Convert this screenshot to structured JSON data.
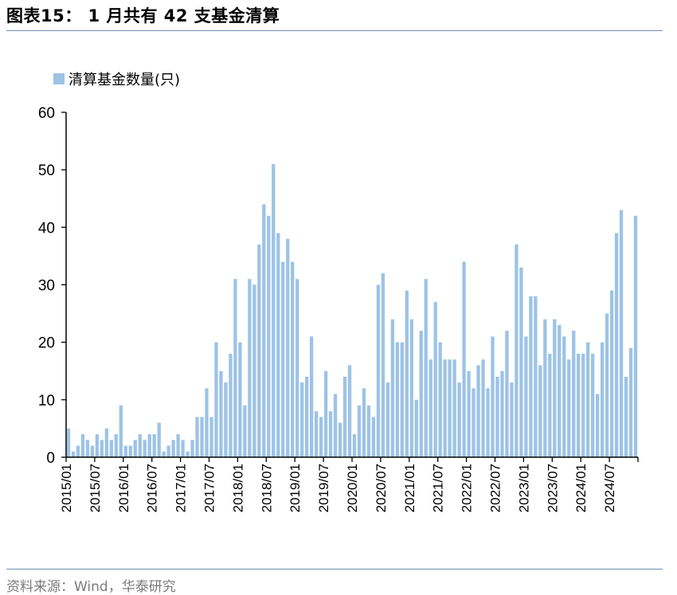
{
  "header": {
    "title": "图表15： 1 月共有 42 支基金清算"
  },
  "footer": {
    "source": "资料来源：Wind，华泰研究"
  },
  "colors": {
    "bar": "#9dc3e6",
    "rule": "#6f8fb5",
    "axis": "#000000"
  },
  "chart_data": {
    "type": "bar",
    "title": "",
    "xlabel": "",
    "ylabel": "",
    "ylim": [
      0,
      60
    ],
    "yticks": [
      0,
      10,
      20,
      30,
      40,
      50,
      60
    ],
    "grid": false,
    "legend_position": "top-left",
    "series": [
      {
        "name": "清算基金数量(只)",
        "values": [
          5,
          1,
          2,
          4,
          3,
          2,
          4,
          3,
          5,
          3,
          4,
          9,
          2,
          2,
          3,
          4,
          3,
          4,
          4,
          6,
          1,
          2,
          3,
          4,
          3,
          1,
          3,
          7,
          7,
          12,
          7,
          20,
          15,
          13,
          18,
          31,
          20,
          9,
          31,
          30,
          37,
          44,
          42,
          51,
          39,
          34,
          38,
          34,
          31,
          13,
          14,
          21,
          8,
          7,
          15,
          8,
          11,
          6,
          14,
          16,
          4,
          9,
          12,
          9,
          7,
          30,
          32,
          13,
          24,
          20,
          20,
          29,
          24,
          10,
          22,
          31,
          17,
          27,
          20,
          17,
          17,
          17,
          13,
          34,
          15,
          12,
          16,
          17,
          12,
          21,
          14,
          15,
          22,
          13,
          37,
          33,
          21,
          28,
          28,
          16,
          24,
          18,
          24,
          23,
          21,
          17,
          22,
          18,
          18,
          20,
          18,
          11,
          20,
          25,
          29,
          39,
          43,
          14,
          19,
          42
        ]
      }
    ],
    "x_start": "2015/01",
    "x_tick_labels": [
      "2015/01",
      "2015/07",
      "2016/01",
      "2016/07",
      "2017/01",
      "2017/07",
      "2018/01",
      "2018/07",
      "2019/01",
      "2019/07",
      "2020/01",
      "2020/07",
      "2021/01",
      "2021/07",
      "2022/01",
      "2022/07",
      "2023/01",
      "2023/07",
      "2024/01",
      "2024/07"
    ]
  }
}
